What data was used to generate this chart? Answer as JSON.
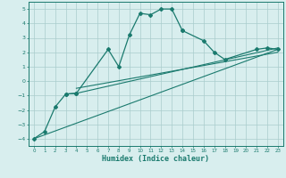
{
  "xlabel": "Humidex (Indice chaleur)",
  "line_color": "#1a7a6e",
  "bg_color": "#d8eeee",
  "grid_color": "#aacccc",
  "xlim": [
    -0.5,
    23.5
  ],
  "ylim": [
    -4.5,
    5.5
  ],
  "yticks": [
    -4,
    -3,
    -2,
    -1,
    0,
    1,
    2,
    3,
    4,
    5
  ],
  "xticks": [
    0,
    1,
    2,
    3,
    4,
    5,
    6,
    7,
    8,
    9,
    10,
    11,
    12,
    13,
    14,
    15,
    16,
    17,
    18,
    19,
    20,
    21,
    22,
    23
  ],
  "straight_line1_x": [
    0,
    23
  ],
  "straight_line1_y": [
    -4.0,
    2.2
  ],
  "straight_line2_x": [
    4,
    23
  ],
  "straight_line2_y": [
    -0.85,
    2.3
  ],
  "straight_line3_x": [
    4,
    23
  ],
  "straight_line3_y": [
    -0.5,
    2.0
  ],
  "jagged_x1": [
    0,
    1,
    2,
    3,
    4
  ],
  "jagged_y1": [
    -4.0,
    -3.5,
    -1.8,
    -0.9,
    -0.85
  ],
  "jagged_x2": [
    3,
    4,
    7,
    8,
    9,
    10,
    11,
    12,
    13,
    14
  ],
  "jagged_y2": [
    -0.9,
    -0.85,
    2.2,
    1.0,
    3.2,
    4.7,
    4.6,
    5.0,
    5.0,
    3.5
  ],
  "jagged_x3": [
    14,
    16,
    17,
    18,
    21,
    22,
    23
  ],
  "jagged_y3": [
    3.5,
    2.8,
    2.0,
    1.5,
    2.2,
    2.3,
    2.2
  ]
}
